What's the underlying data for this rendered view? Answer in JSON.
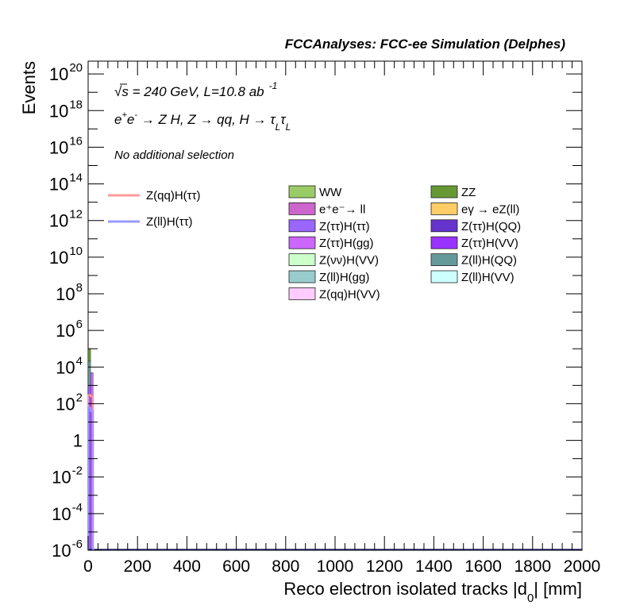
{
  "chart_data": {
    "type": "bar",
    "title": "FCCAnalyses: FCC-ee Simulation (Delphes)",
    "xlabel": "Reco electron isolated tracks |d_0| [mm]",
    "xlabel_main": "Reco electron isolated tracks |d",
    "xlabel_sub": "0",
    "xlabel_tail": "| [mm]",
    "ylabel": "Events",
    "xlim": [
      0,
      2000
    ],
    "ylim_log10": [
      -6,
      20.7
    ],
    "log_y": true,
    "x_ticks": [
      "0",
      "200",
      "400",
      "600",
      "800",
      "1000",
      "1200",
      "1400",
      "1600",
      "1800",
      "2000"
    ],
    "y_ticks": [
      {
        "base": "10",
        "exp": "-6",
        "pow": -6
      },
      {
        "base": "10",
        "exp": "-4",
        "pow": -4
      },
      {
        "base": "10",
        "exp": "-2",
        "pow": -2
      },
      {
        "base": "1",
        "exp": "",
        "pow": 0
      },
      {
        "base": "10",
        "exp": "2",
        "pow": 2
      },
      {
        "base": "10",
        "exp": "4",
        "pow": 4
      },
      {
        "base": "10",
        "exp": "6",
        "pow": 6
      },
      {
        "base": "10",
        "exp": "8",
        "pow": 8
      },
      {
        "base": "10",
        "exp": "10",
        "pow": 10
      },
      {
        "base": "10",
        "exp": "12",
        "pow": 12
      },
      {
        "base": "10",
        "exp": "14",
        "pow": 14
      },
      {
        "base": "10",
        "exp": "16",
        "pow": 16
      },
      {
        "base": "10",
        "exp": "18",
        "pow": 18
      },
      {
        "base": "10",
        "exp": "20",
        "pow": 20
      }
    ],
    "annotations": {
      "energy_line": "√s = 240 GeV, L=10.8 ab",
      "energy_sqrt": "√",
      "energy_s": "s = 240 GeV, L=10.8 ab",
      "lumi_exp": "-1",
      "process_line": "e⁺e⁻ → Z H, Z → qq, H → τ_L τ_L",
      "process_parts": {
        "ee": "e",
        "plus": "+",
        "e2": "e",
        "minus": "-",
        "rest": " → Z H, Z  → qq, H  → ",
        "tau1": "τ",
        "sub1": "L",
        "tau2": "τ",
        "sub2": "L"
      },
      "selection": "No additional selection"
    },
    "signal_legend": [
      {
        "name": "Z(qq)H(ττ)",
        "color": "#ff9999"
      },
      {
        "name": "Z(ll)H(ττ)",
        "color": "#9999ff"
      }
    ],
    "background_legend": [
      {
        "name": "WW",
        "color": "#99cc66"
      },
      {
        "name": "ZZ",
        "color": "#669933"
      },
      {
        "name": "e⁺e⁻→ ll",
        "color": "#cc66cc"
      },
      {
        "name": "eγ → eZ(ll)",
        "color": "#ffcc66"
      },
      {
        "name": "Z(ττ)H(ττ)",
        "color": "#9966ff"
      },
      {
        "name": "Z(ττ)H(QQ)",
        "color": "#6633cc"
      },
      {
        "name": "Z(ττ)H(gg)",
        "color": "#cc66ff"
      },
      {
        "name": "Z(ττ)H(VV)",
        "color": "#9933ff"
      },
      {
        "name": "Z(νν)H(VV)",
        "color": "#ccffcc"
      },
      {
        "name": "Z(ll)H(QQ)",
        "color": "#669999"
      },
      {
        "name": "Z(ll)H(gg)",
        "color": "#99cccc"
      },
      {
        "name": "Z(ll)H(VV)",
        "color": "#ccffff"
      },
      {
        "name": "Z(qq)H(VV)",
        "color": "#ffccff"
      }
    ],
    "bin_width": 10,
    "stack": [
      {
        "name": "Z(ττ)H(ττ)",
        "color": "#9966ff",
        "x": [
          0,
          10
        ],
        "values": [
          1000,
          1e-06
        ]
      },
      {
        "name": "Z(ττ)H(gg)",
        "color": "#cc66ff",
        "x": [
          0,
          10
        ],
        "values": [
          1e-06,
          5000
        ]
      },
      {
        "name": "Z(ll)H(QQ)",
        "color": "#669999",
        "x": [
          0
        ],
        "values": [
          20000
        ]
      },
      {
        "name": "ZZ",
        "color": "#669933",
        "x": [
          0
        ],
        "values": [
          80000
        ]
      }
    ],
    "signal_step": [
      {
        "name": "Z(qq)H(ττ)",
        "color": "#ff9999",
        "x": [
          0,
          10
        ],
        "values": [
          300,
          250
        ]
      },
      {
        "name": "Z(ll)H(ττ)",
        "color": "#9999ff",
        "x": [
          0,
          10
        ],
        "values": [
          60,
          40
        ]
      }
    ]
  }
}
